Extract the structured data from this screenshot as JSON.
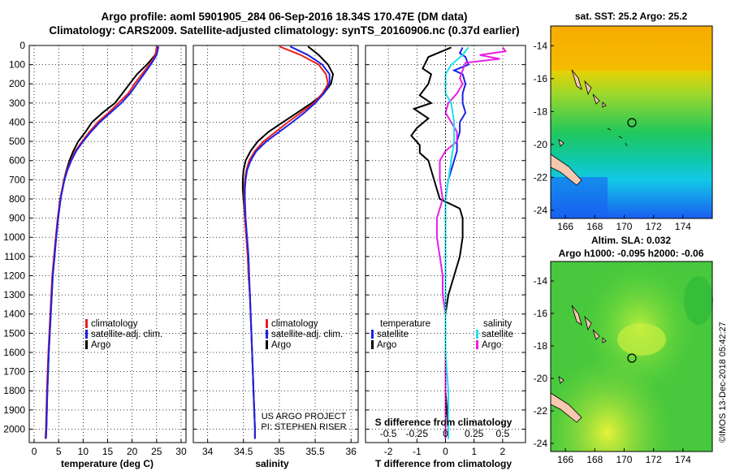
{
  "header": {
    "title_line1": "Argo profile: aoml 5901905_284 06-Sep-2016 18.34S 170.47E (DM data)",
    "title_line2": "Climatology: CARS2009. Satellite-adjusted climatology: synTS_20160906.nc (0.37d earlier)"
  },
  "depth_axis": {
    "ticks": [
      0,
      100,
      200,
      300,
      400,
      500,
      600,
      700,
      800,
      900,
      1000,
      1100,
      1200,
      1300,
      1400,
      1500,
      1600,
      1700,
      1800,
      1900,
      2000
    ],
    "range": [
      0,
      2070
    ],
    "inverted": true
  },
  "colors": {
    "argo": "#000000",
    "climatology": "#e8201f",
    "satellite": "#1c22e6",
    "sal_satellite": "#20e0ee",
    "sal_diff": "#e81ee8"
  },
  "chart_data": [
    {
      "name": "temperature-profile",
      "type": "line",
      "xlabel": "temperature (deg C)",
      "xlim": [
        -1,
        31
      ],
      "xticks": [
        0,
        5,
        10,
        15,
        20,
        25,
        30
      ],
      "grid": true,
      "legend": {
        "placement": "bottom-center",
        "entries": [
          "climatology",
          "satellite-adj. clim.",
          "Argo"
        ]
      },
      "series": [
        {
          "name": "Argo",
          "depth": [
            5,
            50,
            100,
            150,
            200,
            250,
            300,
            350,
            400,
            450,
            500,
            550,
            600,
            650,
            700,
            800,
            900,
            1000,
            1200,
            1400,
            1600,
            1800,
            2000,
            2050
          ],
          "values": [
            25.2,
            24.7,
            23.0,
            21.0,
            19.5,
            18.0,
            16.5,
            14.0,
            11.8,
            10.5,
            9.0,
            8.0,
            7.2,
            6.6,
            6.1,
            5.4,
            4.9,
            4.5,
            3.8,
            3.4,
            3.0,
            2.7,
            2.5,
            2.4
          ]
        },
        {
          "name": "climatology",
          "depth": [
            5,
            50,
            100,
            150,
            200,
            250,
            300,
            350,
            400,
            450,
            500,
            550,
            600,
            650,
            700,
            800,
            900,
            1000,
            1200,
            1400,
            1600,
            1800,
            2000,
            2050
          ],
          "values": [
            25.0,
            24.8,
            23.5,
            22.0,
            20.5,
            19.2,
            17.2,
            15.2,
            13.0,
            11.3,
            9.8,
            8.4,
            7.5,
            6.7,
            6.1,
            5.3,
            4.8,
            4.4,
            3.7,
            3.3,
            2.9,
            2.6,
            2.4,
            2.3
          ]
        },
        {
          "name": "satellite-adj. clim.",
          "depth": [
            5,
            50,
            100,
            150,
            200,
            250,
            300,
            350,
            400,
            450,
            500,
            550,
            600,
            650,
            700,
            800,
            900,
            1000,
            1200,
            1400,
            1600,
            1800,
            2000,
            2050
          ],
          "values": [
            25.4,
            25.0,
            23.8,
            22.4,
            21.0,
            19.6,
            17.8,
            15.6,
            13.4,
            11.6,
            10.0,
            8.6,
            7.6,
            6.8,
            6.2,
            5.4,
            4.9,
            4.5,
            3.8,
            3.4,
            3.0,
            2.7,
            2.5,
            2.4
          ]
        }
      ]
    },
    {
      "name": "salinity-profile",
      "type": "line",
      "xlabel": "salinity",
      "xlim": [
        33.8,
        36.1
      ],
      "xticks": [
        34,
        34.5,
        35,
        35.5,
        36
      ],
      "grid": true,
      "legend": {
        "placement": "bottom-center",
        "entries": [
          "climatology",
          "satellite-adj. clim.",
          "Argo"
        ]
      },
      "annotation": [
        "US ARGO PROJECT",
        "PI: STEPHEN RISER"
      ],
      "series": [
        {
          "name": "Argo",
          "depth": [
            5,
            50,
            100,
            150,
            200,
            250,
            300,
            350,
            400,
            450,
            500,
            550,
            600,
            650,
            700,
            750,
            800,
            900,
            1000,
            1100,
            1200,
            1300,
            1400,
            1500,
            1600,
            1700,
            1800,
            1900,
            2000,
            2050
          ],
          "values": [
            35.4,
            35.55,
            35.68,
            35.75,
            35.72,
            35.62,
            35.45,
            35.25,
            35.05,
            34.85,
            34.7,
            34.6,
            34.53,
            34.5,
            34.49,
            34.49,
            34.5,
            34.52,
            34.54,
            34.56,
            34.57,
            34.59,
            34.6,
            34.61,
            34.62,
            34.63,
            34.64,
            34.65,
            34.66,
            34.66
          ]
        },
        {
          "name": "climatology",
          "depth": [
            5,
            50,
            100,
            150,
            200,
            250,
            300,
            350,
            400,
            450,
            500,
            550,
            600,
            650,
            700,
            750,
            800,
            900,
            1000,
            1100,
            1200,
            1300,
            1400,
            1500,
            1600,
            1700,
            1800,
            1900,
            2000,
            2050
          ],
          "values": [
            35.0,
            35.3,
            35.55,
            35.65,
            35.68,
            35.6,
            35.48,
            35.3,
            35.12,
            34.95,
            34.78,
            34.66,
            34.58,
            34.54,
            34.52,
            34.51,
            34.51,
            34.52,
            34.54,
            34.56,
            34.57,
            34.59,
            34.6,
            34.61,
            34.62,
            34.63,
            34.64,
            34.65,
            34.66,
            34.66
          ]
        },
        {
          "name": "satellite-adj. clim.",
          "depth": [
            5,
            50,
            100,
            150,
            200,
            250,
            300,
            350,
            400,
            450,
            500,
            550,
            600,
            650,
            700,
            750,
            800,
            900,
            1000,
            1100,
            1200,
            1300,
            1400,
            1500,
            1600,
            1700,
            1800,
            1900,
            2000,
            2050
          ],
          "values": [
            35.15,
            35.4,
            35.6,
            35.7,
            35.7,
            35.62,
            35.5,
            35.35,
            35.18,
            35.0,
            34.82,
            34.68,
            34.6,
            34.55,
            34.53,
            34.52,
            34.52,
            34.53,
            34.55,
            34.57,
            34.58,
            34.59,
            34.6,
            34.61,
            34.62,
            34.63,
            34.64,
            34.65,
            34.66,
            34.66
          ]
        }
      ]
    },
    {
      "name": "difference-profile",
      "type": "line",
      "xlabel": "T difference from climatology",
      "xlabel_top": "S difference from climatology",
      "xlim": [
        -2.8,
        2.8
      ],
      "xticks": [
        -2,
        -1,
        0,
        1,
        2
      ],
      "xticks_top": [
        "-0.5",
        "-0.25",
        "0",
        "0.25",
        "0.5"
      ],
      "grid": true,
      "legend": {
        "placement": "bottom",
        "temperature_header": "temperature",
        "salinity_header": "salinity",
        "entries_t": [
          "satellite",
          "Argo"
        ],
        "entries_s": [
          "satellite",
          "Argo"
        ]
      },
      "series": [
        {
          "name": "Argo",
          "depth": [
            10,
            60,
            90,
            120,
            150,
            200,
            260,
            300,
            330,
            380,
            430,
            470,
            520,
            560,
            600,
            700,
            800,
            850,
            900,
            950,
            1000,
            1100,
            1200,
            1300,
            1400,
            1500,
            1600,
            1800,
            2000,
            2050
          ],
          "values": [
            0.2,
            -0.6,
            -0.7,
            -0.8,
            -0.5,
            -0.6,
            -0.9,
            -0.5,
            -1.1,
            -0.6,
            -1.0,
            -1.2,
            -0.9,
            -0.9,
            -0.6,
            -0.4,
            -0.2,
            0.5,
            0.6,
            0.6,
            0.6,
            0.5,
            0.3,
            0.1,
            0.0,
            0.0,
            0.0,
            0.0,
            0.1,
            0.1
          ]
        },
        {
          "name": "satellite",
          "depth": [
            10,
            40,
            60,
            100,
            130,
            150,
            200,
            250,
            300,
            350,
            400,
            450,
            500,
            550,
            600,
            700,
            800,
            900,
            1000,
            1200,
            1400,
            1600,
            1800,
            2000,
            2050
          ],
          "values": [
            0.6,
            0.5,
            0.7,
            0.8,
            0.3,
            0.6,
            0.7,
            0.6,
            0.6,
            0.7,
            0.5,
            0.5,
            0.4,
            0.4,
            0.3,
            0.1,
            0.0,
            0.0,
            0.0,
            0.0,
            0.0,
            0.0,
            0.0,
            0.0,
            0.0
          ]
        },
        {
          "name": "salinity Argo",
          "depth": [
            10,
            30,
            50,
            70,
            90,
            130,
            170,
            200,
            250,
            300,
            350,
            400,
            450,
            500,
            550,
            600,
            650,
            700,
            800,
            900,
            1000,
            1100,
            1200,
            1300,
            1400,
            1500,
            1600,
            1800,
            2000,
            2050
          ],
          "values": [
            2.0,
            2.1,
            1.2,
            1.9,
            0.7,
            0.6,
            0.5,
            0.6,
            0.4,
            0.1,
            0.0,
            0.2,
            0.4,
            0.4,
            0.0,
            -0.2,
            -0.2,
            -0.2,
            -0.1,
            -0.3,
            -0.3,
            -0.2,
            -0.1,
            -0.1,
            0.0,
            0.0,
            0.0,
            0.0,
            0.0,
            0.0
          ]
        },
        {
          "name": "salinity satellite",
          "depth": [
            10,
            50,
            100,
            150,
            200,
            250,
            300,
            400,
            500,
            600,
            700,
            800,
            900,
            1000,
            1200,
            1400,
            1600,
            1800,
            2000,
            2050
          ],
          "values": [
            0.8,
            0.6,
            0.2,
            0.0,
            0.0,
            0.0,
            0.2,
            0.3,
            0.3,
            0.2,
            0.1,
            0.0,
            0.0,
            0.0,
            0.0,
            0.0,
            0.0,
            0.1,
            0.1,
            0.1
          ]
        }
      ]
    }
  ],
  "maps": {
    "sst": {
      "title": "sat. SST: 25.2 Argo: 25.2"
    },
    "sla": {
      "title_line1": "Altim. SLA: 0.032",
      "title_line2": "Argo h1000: -0.095 h2000: -0.06"
    },
    "lat_ticks": [
      "-14",
      "-16",
      "-18",
      "-20",
      "-22",
      "-24"
    ],
    "lon_ticks": [
      "166",
      "168",
      "170",
      "172",
      "174"
    ],
    "lon_range": [
      165,
      176
    ],
    "lat_range": [
      -24.5,
      -12.8
    ]
  },
  "watermark": "©IMOS 13-Dec-2018 05:42:27"
}
